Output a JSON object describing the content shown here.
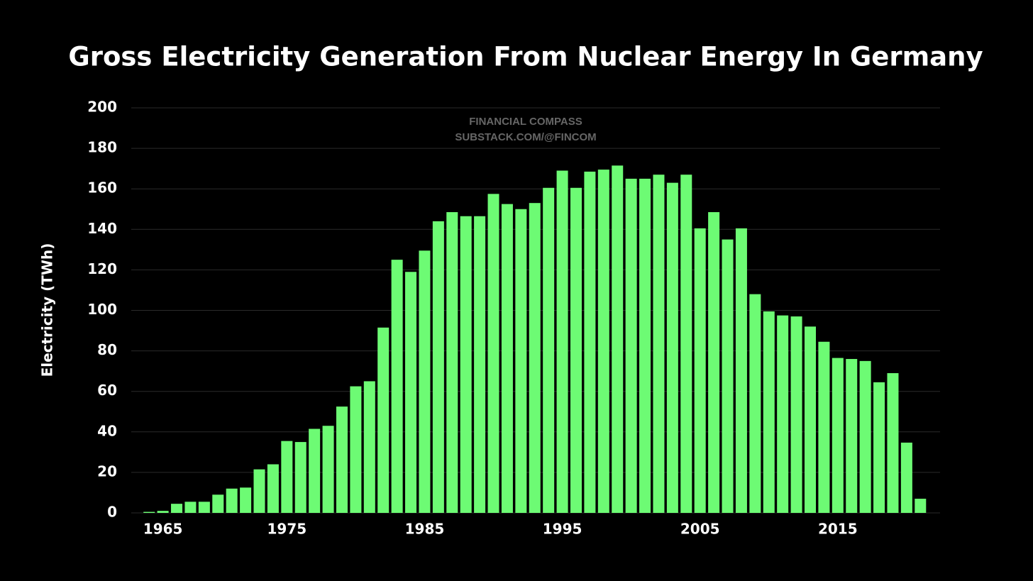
{
  "chart_data": {
    "type": "bar",
    "title": "Gross Electricity Generation From Nuclear Energy In Germany",
    "watermark": [
      "FINANCIAL COMPASS",
      "SUBSTACK.COM/@FINCOM"
    ],
    "y_label": "Electricity (TWh)",
    "categories": [
      null,
      "1965",
      null,
      null,
      null,
      null,
      null,
      null,
      null,
      null,
      "1975",
      null,
      null,
      null,
      null,
      null,
      null,
      null,
      null,
      null,
      "1985",
      null,
      null,
      null,
      null,
      null,
      null,
      null,
      null,
      null,
      "1995",
      null,
      null,
      null,
      null,
      null,
      null,
      null,
      null,
      null,
      "2005",
      null,
      null,
      null,
      null,
      null,
      null,
      null,
      null,
      null,
      "2015",
      null,
      null,
      null,
      null,
      null,
      null
    ],
    "values": [
      0.5,
      1,
      4.5,
      5.5,
      5.5,
      9,
      12,
      12.5,
      21.5,
      24,
      35.5,
      35,
      41.5,
      43,
      52.5,
      62.5,
      65,
      91.5,
      125,
      119,
      129.5,
      144,
      148.5,
      146.5,
      146.5,
      157.5,
      152.5,
      150,
      153,
      160.5,
      169,
      160.5,
      168.5,
      169.5,
      171.5,
      165,
      165,
      167,
      163,
      167,
      140.5,
      148.5,
      135,
      140.5,
      108,
      99.5,
      97.5,
      97,
      92,
      84.5,
      76.5,
      76,
      75,
      64.5,
      69,
      34.7,
      7
    ],
    "color": "#6dfb74",
    "ylim": [
      0,
      200
    ],
    "yticks": [
      0,
      20,
      40,
      60,
      80,
      100,
      120,
      140,
      160,
      180,
      200
    ],
    "grid": true
  }
}
